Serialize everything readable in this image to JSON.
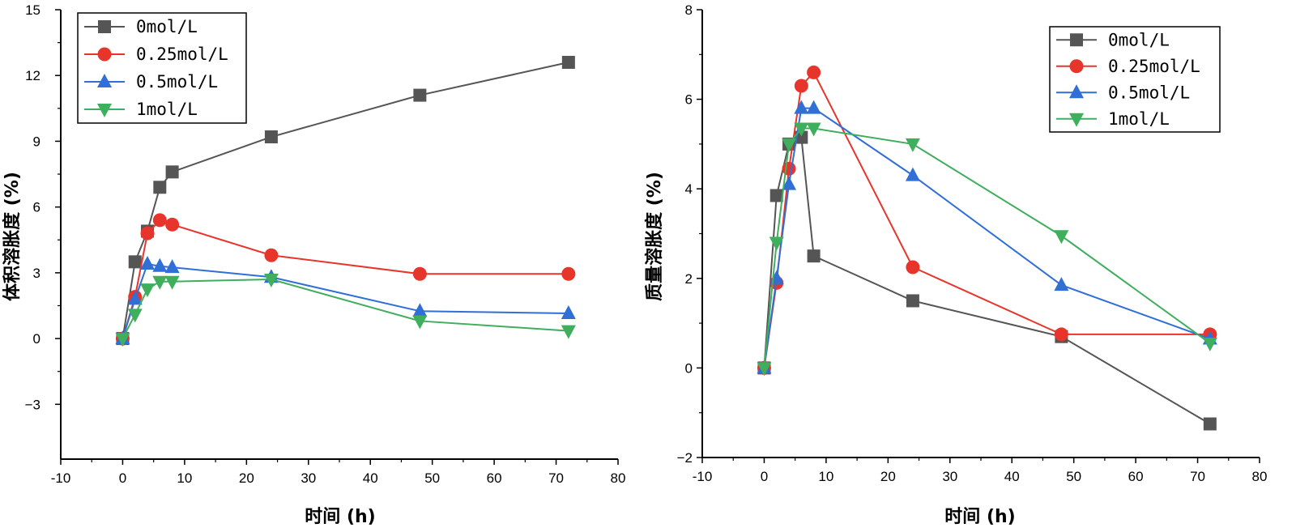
{
  "chart_data": [
    {
      "type": "line",
      "title": "",
      "xlabel": "时间 (h)",
      "ylabel": "体积溶胀度 (%)",
      "xlim": [
        -10,
        80
      ],
      "ylim": [
        -5.5,
        15
      ],
      "xticks": [
        -10,
        0,
        10,
        20,
        30,
        40,
        50,
        60,
        70,
        80
      ],
      "yticks": [
        -3,
        0,
        3,
        6,
        9,
        12,
        15
      ],
      "ytick_labels": [
        "−3",
        "0",
        "3",
        "6",
        "9",
        "12",
        "15"
      ],
      "legend_position": "top-left",
      "grid": false,
      "x": [
        0,
        2,
        4,
        6,
        8,
        24,
        48,
        72
      ],
      "series": [
        {
          "name": "0mol/L",
          "color": "#555555",
          "marker": "square",
          "values": [
            0,
            3.5,
            4.9,
            6.9,
            7.6,
            9.2,
            11.1,
            12.6
          ]
        },
        {
          "name": "0.25mol/L",
          "color": "#e8352c",
          "marker": "circle",
          "values": [
            0,
            1.9,
            4.8,
            5.4,
            5.2,
            3.8,
            2.95,
            2.95
          ]
        },
        {
          "name": "0.5mol/L",
          "color": "#2f6fd6",
          "marker": "triangle-up",
          "values": [
            0,
            1.8,
            3.4,
            3.3,
            3.25,
            2.8,
            1.25,
            1.15
          ]
        },
        {
          "name": "1mol/L",
          "color": "#3fae5d",
          "marker": "triangle-down",
          "values": [
            0,
            1.1,
            2.25,
            2.6,
            2.6,
            2.7,
            0.8,
            0.35
          ]
        }
      ]
    },
    {
      "type": "line",
      "title": "",
      "xlabel": "时间 (h)",
      "ylabel": "质量溶胀度 (%)",
      "xlim": [
        -10,
        80
      ],
      "ylim": [
        -2,
        8
      ],
      "xticks": [
        -10,
        0,
        10,
        20,
        30,
        40,
        50,
        60,
        70,
        80
      ],
      "yticks": [
        -2,
        0,
        2,
        4,
        6,
        8
      ],
      "ytick_labels": [
        "−2",
        "0",
        "2",
        "4",
        "6",
        "8"
      ],
      "legend_position": "top-right",
      "grid": false,
      "x": [
        0,
        2,
        4,
        6,
        8,
        24,
        48,
        72
      ],
      "series": [
        {
          "name": "0mol/L",
          "color": "#555555",
          "marker": "square",
          "values": [
            0,
            3.85,
            5.0,
            5.15,
            2.5,
            1.5,
            0.7,
            -1.25
          ]
        },
        {
          "name": "0.25mol/L",
          "color": "#e8352c",
          "marker": "circle",
          "values": [
            0,
            1.9,
            4.45,
            6.3,
            6.6,
            2.25,
            0.75,
            0.75
          ]
        },
        {
          "name": "0.5mol/L",
          "color": "#2f6fd6",
          "marker": "triangle-up",
          "values": [
            0,
            2.0,
            4.1,
            5.8,
            5.8,
            4.3,
            1.85,
            0.65
          ]
        },
        {
          "name": "1mol/L",
          "color": "#3fae5d",
          "marker": "triangle-down",
          "values": [
            0,
            2.8,
            5.0,
            5.35,
            5.35,
            5.0,
            2.95,
            0.55
          ]
        }
      ]
    }
  ]
}
